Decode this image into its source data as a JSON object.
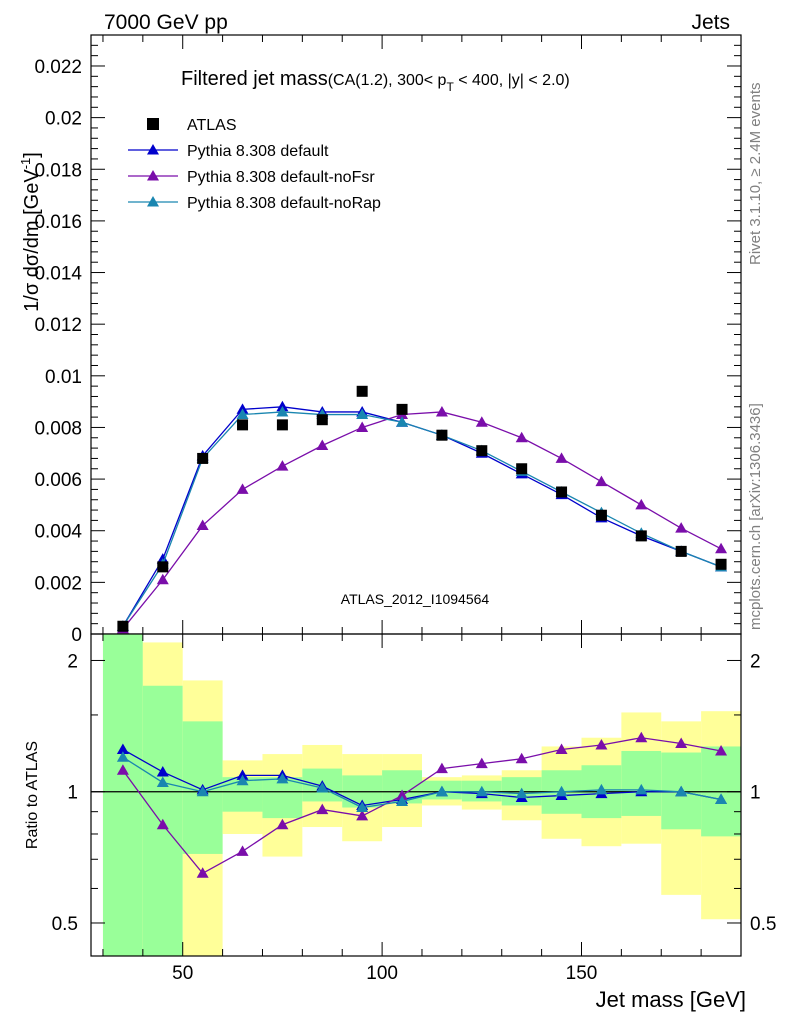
{
  "header": {
    "left": "7000 GeV pp",
    "right": "Jets"
  },
  "main_title": {
    "main": "Filtered jet mass",
    "cond_a": "(CA(1.2), 300< p",
    "cond_sub": "T",
    "cond_b": " < 400, |y| < 2.0)"
  },
  "side_labels": {
    "rivet": "Rivet 3.1.10, ≥ 2.4M events",
    "mcplots": "mcplots.cern.ch [arXiv:1306.3436]"
  },
  "watermark": "ATLAS_2012_I1094564",
  "y_axis_top": {
    "label": "1/σ dσ/dm [GeV",
    "label_sup": "-1",
    "label_end": "]",
    "ticks": [
      "0",
      "0.002",
      "0.004",
      "0.006",
      "0.008",
      "0.01",
      "0.012",
      "0.014",
      "0.016",
      "0.018",
      "0.02",
      "0.022"
    ]
  },
  "y_axis_bottom": {
    "label": "Ratio to ATLAS",
    "ticks": [
      "0.5",
      "1",
      "2"
    ]
  },
  "x_axis": {
    "label": "Jet mass [GeV]",
    "ticks": [
      "50",
      "100",
      "150"
    ]
  },
  "legend": [
    {
      "name": "ATLAS",
      "color": "#000000",
      "marker": "square"
    },
    {
      "name": "Pythia 8.308 default",
      "color": "#0000cc",
      "marker": "triangle"
    },
    {
      "name": "Pythia 8.308 default-noFsr",
      "color": "#7a0eaa",
      "marker": "triangle"
    },
    {
      "name": "Pythia 8.308 default-noRap",
      "color": "#1a86b0",
      "marker": "triangle"
    }
  ],
  "chart_data": [
    {
      "type": "line",
      "xlim": [
        27,
        190
      ],
      "ylim": [
        0,
        0.0232
      ],
      "x": [
        35,
        45,
        55,
        65,
        75,
        85,
        95,
        105,
        115,
        125,
        135,
        145,
        155,
        165,
        175,
        185
      ],
      "series": [
        {
          "name": "ATLAS",
          "marker": "square",
          "color": "#000000",
          "values": [
            0.0003,
            0.0026,
            0.0068,
            0.0081,
            0.0081,
            0.0083,
            0.0094,
            0.0087,
            0.0077,
            0.0071,
            0.0064,
            0.0055,
            0.0046,
            0.0038,
            0.0032,
            0.0027
          ]
        },
        {
          "name": "Pythia 8.308 default",
          "marker": "triangle",
          "color": "#0000cc",
          "values": [
            0.0003,
            0.0029,
            0.0069,
            0.0087,
            0.0088,
            0.0086,
            0.0086,
            0.0082,
            0.0077,
            0.007,
            0.0062,
            0.0054,
            0.0045,
            0.0038,
            0.0032,
            0.0026
          ]
        },
        {
          "name": "Pythia 8.308 default-noFsr",
          "marker": "triangle",
          "color": "#7a0eaa",
          "values": [
            0.0002,
            0.0021,
            0.0042,
            0.0056,
            0.0065,
            0.0073,
            0.008,
            0.0085,
            0.0086,
            0.0082,
            0.0076,
            0.0068,
            0.0059,
            0.005,
            0.0041,
            0.0033
          ]
        },
        {
          "name": "Pythia 8.308 default-noRap",
          "marker": "triangle",
          "color": "#1a86b0",
          "values": [
            0.0003,
            0.0027,
            0.0068,
            0.0085,
            0.0086,
            0.0085,
            0.0085,
            0.0082,
            0.0077,
            0.0071,
            0.0063,
            0.0055,
            0.0047,
            0.0039,
            0.0032,
            0.0026
          ]
        }
      ]
    },
    {
      "type": "line",
      "xlim": [
        27,
        190
      ],
      "ylim": [
        0.42,
        2.3
      ],
      "y_scale": "log",
      "reference_line": 1,
      "bands": [
        {
          "x0": 30,
          "x1": 40,
          "y1_lo": 0.42,
          "y1_hi": 2.3,
          "y2_lo": 0.42,
          "y2_hi": 2.3
        },
        {
          "x0": 40,
          "x1": 50,
          "y1_lo": 0.42,
          "y1_hi": 1.75,
          "y2_lo": 0.42,
          "y2_hi": 2.2
        },
        {
          "x0": 50,
          "x1": 60,
          "y1_lo": 0.72,
          "y1_hi": 1.45,
          "y2_lo": 0.42,
          "y2_hi": 1.8
        },
        {
          "x0": 60,
          "x1": 70,
          "y1_lo": 0.9,
          "y1_hi": 1.08,
          "y2_lo": 0.8,
          "y2_hi": 1.18
        },
        {
          "x0": 70,
          "x1": 80,
          "y1_lo": 0.87,
          "y1_hi": 1.08,
          "y2_lo": 0.71,
          "y2_hi": 1.22
        },
        {
          "x0": 80,
          "x1": 90,
          "y1_lo": 0.95,
          "y1_hi": 1.13,
          "y2_lo": 0.83,
          "y2_hi": 1.28
        },
        {
          "x0": 90,
          "x1": 100,
          "y1_lo": 0.92,
          "y1_hi": 1.09,
          "y2_lo": 0.77,
          "y2_hi": 1.22
        },
        {
          "x0": 100,
          "x1": 110,
          "y1_lo": 0.94,
          "y1_hi": 1.12,
          "y2_lo": 0.83,
          "y2_hi": 1.22
        },
        {
          "x0": 110,
          "x1": 120,
          "y1_lo": 0.96,
          "y1_hi": 1.06,
          "y2_lo": 0.93,
          "y2_hi": 1.08
        },
        {
          "x0": 120,
          "x1": 130,
          "y1_lo": 0.95,
          "y1_hi": 1.06,
          "y2_lo": 0.91,
          "y2_hi": 1.09
        },
        {
          "x0": 130,
          "x1": 140,
          "y1_lo": 0.93,
          "y1_hi": 1.08,
          "y2_lo": 0.86,
          "y2_hi": 1.12
        },
        {
          "x0": 140,
          "x1": 150,
          "y1_lo": 0.89,
          "y1_hi": 1.12,
          "y2_lo": 0.78,
          "y2_hi": 1.27
        },
        {
          "x0": 150,
          "x1": 160,
          "y1_lo": 0.87,
          "y1_hi": 1.15,
          "y2_lo": 0.75,
          "y2_hi": 1.33
        },
        {
          "x0": 160,
          "x1": 170,
          "y1_lo": 0.88,
          "y1_hi": 1.24,
          "y2_lo": 0.76,
          "y2_hi": 1.52
        },
        {
          "x0": 170,
          "x1": 180,
          "y1_lo": 0.82,
          "y1_hi": 1.23,
          "y2_lo": 0.58,
          "y2_hi": 1.45
        },
        {
          "x0": 180,
          "x1": 190,
          "y1_lo": 0.79,
          "y1_hi": 1.27,
          "y2_lo": 0.51,
          "y2_hi": 1.53
        }
      ],
      "x": [
        35,
        45,
        55,
        65,
        75,
        85,
        95,
        105,
        115,
        125,
        135,
        145,
        155,
        165,
        175,
        185
      ],
      "series": [
        {
          "name": "Pythia 8.308 default",
          "color": "#0000cc",
          "values": [
            1.25,
            1.11,
            1.01,
            1.09,
            1.09,
            1.03,
            0.93,
            0.96,
            1.0,
            0.99,
            0.97,
            0.98,
            0.99,
            1.0,
            1.0,
            0.96
          ]
        },
        {
          "name": "Pythia 8.308 default-noFsr",
          "color": "#7a0eaa",
          "values": [
            1.12,
            0.84,
            0.65,
            0.73,
            0.84,
            0.91,
            0.88,
            0.98,
            1.13,
            1.16,
            1.19,
            1.25,
            1.28,
            1.33,
            1.29,
            1.24
          ]
        },
        {
          "name": "Pythia 8.308 default-noRap",
          "color": "#1a86b0",
          "values": [
            1.2,
            1.05,
            1.0,
            1.06,
            1.07,
            1.02,
            0.92,
            0.95,
            1.0,
            1.0,
            0.99,
            1.0,
            1.01,
            1.01,
            1.0,
            0.96
          ]
        }
      ]
    }
  ]
}
